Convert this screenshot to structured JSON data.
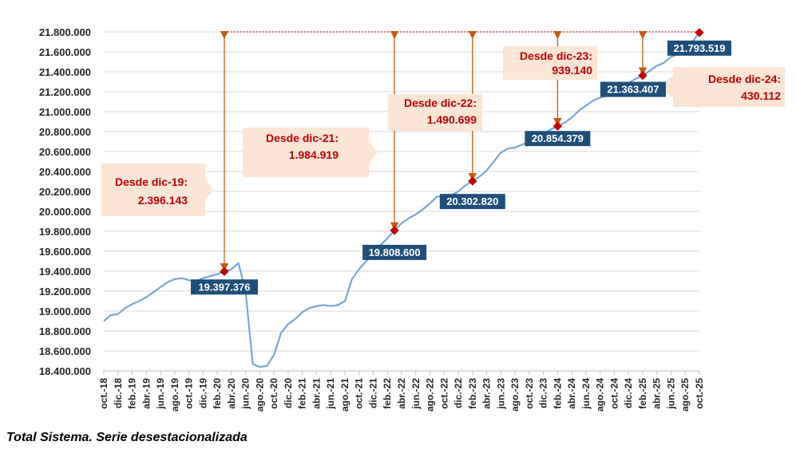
{
  "caption": "Total Sistema. Serie desestacionalizada",
  "chart_data": {
    "type": "line",
    "ylim": [
      18400000,
      21800000
    ],
    "yticks": [
      "18.400.000",
      "18.600.000",
      "18.800.000",
      "19.000.000",
      "19.200.000",
      "19.400.000",
      "19.600.000",
      "19.800.000",
      "20.000.000",
      "20.200.000",
      "20.400.000",
      "20.600.000",
      "20.800.000",
      "21.000.000",
      "21.200.000",
      "21.400.000",
      "21.600.000",
      "21.800.000"
    ],
    "xticks": [
      "oct.-18",
      "dic.-18",
      "feb.-19",
      "abr.-19",
      "jun.-19",
      "ago.-19",
      "oct.-19",
      "dic.-19",
      "feb.-20",
      "abr.-20",
      "jun.-20",
      "ago.-20",
      "oct.-20",
      "dic.-20",
      "feb.-21",
      "abr.-21",
      "jun.-21",
      "ago.-21",
      "oct.-21",
      "dic.-21",
      "feb.-22",
      "abr.-22",
      "jun.-22",
      "ago.-22",
      "oct.-22",
      "dic.-22",
      "feb.-23",
      "abr.-23",
      "jun.-23",
      "ago.-23",
      "oct.-23",
      "dic.-23",
      "feb.-24",
      "abr.-24",
      "jun.-24",
      "ago.-24",
      "oct.-24",
      "dic.-24",
      "feb.-25",
      "abr.-25",
      "jun.-25",
      "ago.-25",
      "oct.-25"
    ],
    "line_color": "#7aa7d6",
    "marker_color": "#c00000",
    "label_bg": "#1f4e79",
    "annotation_bg": "#fbe5d6",
    "arrow_color": "#c55a11",
    "series": [
      {
        "values": [
          18900000,
          18960000,
          18970000,
          19030000,
          19070000,
          19100000,
          19140000,
          19190000,
          19240000,
          19290000,
          19320000,
          19330000,
          19310000,
          19300000,
          19330000,
          19350000,
          19370000,
          19397376,
          19420000,
          19480000,
          19200000,
          18470000,
          18440000,
          18450000,
          18560000,
          18780000,
          18870000,
          18920000,
          18990000,
          19030000,
          19050000,
          19060000,
          19050000,
          19060000,
          19100000,
          19320000,
          19420000,
          19500000,
          19570000,
          19660000,
          19730000,
          19808600,
          19880000,
          19930000,
          19970000,
          20020000,
          20080000,
          20150000,
          20150000,
          20160000,
          20200000,
          20260000,
          20302820,
          20350000,
          20410000,
          20500000,
          20590000,
          20630000,
          20640000,
          20670000,
          20700000,
          20730000,
          20780000,
          20820000,
          20854379,
          20890000,
          20940000,
          21010000,
          21060000,
          21110000,
          21140000,
          21160000,
          21200000,
          21240000,
          21290000,
          21330000,
          21363407,
          21410000,
          21460000,
          21490000,
          21550000,
          21580000,
          21600000,
          21700000,
          21793519
        ]
      }
    ],
    "highlights": [
      {
        "index": 17,
        "label": "19.397.376"
      },
      {
        "index": 41,
        "label": "19.808.600"
      },
      {
        "index": 52,
        "label": "20.302.820"
      },
      {
        "index": 64,
        "label": "20.854.379"
      },
      {
        "index": 76,
        "label": "21.363.407"
      },
      {
        "index": 84,
        "label": "21.793.519"
      }
    ],
    "annotations": [
      {
        "line1": "Desde dic-19:",
        "line2": "2.396.143"
      },
      {
        "line1": "Desde dic-21:",
        "line2": "1.984.919"
      },
      {
        "line1": "Desde dic-22:",
        "line2": "1.490.699"
      },
      {
        "line1": "Desde dic-23:",
        "line2": "939.140"
      },
      {
        "line1": "Desde dic-24:",
        "line2": "430.112"
      }
    ]
  }
}
